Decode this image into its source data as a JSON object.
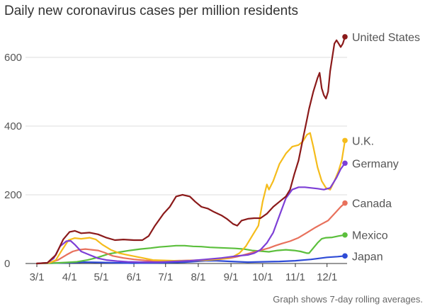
{
  "chart_data": {
    "type": "line",
    "title": "Daily new coronavirus cases per million residents",
    "note": "Graph shows 7-day rolling averages.",
    "xlabel": "",
    "ylabel": "",
    "ylim": [
      0,
      680
    ],
    "y_ticks": [
      {
        "value": 0,
        "label": "0"
      },
      {
        "value": 200,
        "label": "200"
      },
      {
        "value": 400,
        "label": "400"
      },
      {
        "value": 600,
        "label": "600"
      }
    ],
    "x_ticks": [
      {
        "value": 0,
        "label": "3/1"
      },
      {
        "value": 31,
        "label": "4/1"
      },
      {
        "value": 61,
        "label": "5/1"
      },
      {
        "value": 92,
        "label": "6/1"
      },
      {
        "value": 122,
        "label": "7/1"
      },
      {
        "value": 153,
        "label": "8/1"
      },
      {
        "value": 184,
        "label": "9/1"
      },
      {
        "value": 214,
        "label": "10/1"
      },
      {
        "value": 245,
        "label": "11/1"
      },
      {
        "value": 275,
        "label": "12/1"
      }
    ],
    "x_unit": "days since 3/1",
    "series": [
      {
        "name": "United States",
        "color": "#8b1a1a",
        "points": [
          [
            0,
            0
          ],
          [
            10,
            2
          ],
          [
            18,
            25
          ],
          [
            25,
            70
          ],
          [
            31,
            92
          ],
          [
            36,
            95
          ],
          [
            42,
            88
          ],
          [
            50,
            90
          ],
          [
            58,
            85
          ],
          [
            66,
            75
          ],
          [
            74,
            68
          ],
          [
            82,
            70
          ],
          [
            92,
            68
          ],
          [
            100,
            68
          ],
          [
            106,
            80
          ],
          [
            112,
            110
          ],
          [
            120,
            145
          ],
          [
            126,
            165
          ],
          [
            132,
            195
          ],
          [
            138,
            200
          ],
          [
            145,
            195
          ],
          [
            150,
            180
          ],
          [
            156,
            165
          ],
          [
            162,
            160
          ],
          [
            168,
            150
          ],
          [
            175,
            140
          ],
          [
            180,
            130
          ],
          [
            186,
            115
          ],
          [
            190,
            110
          ],
          [
            194,
            125
          ],
          [
            200,
            130
          ],
          [
            206,
            132
          ],
          [
            212,
            132
          ],
          [
            218,
            145
          ],
          [
            224,
            165
          ],
          [
            230,
            180
          ],
          [
            236,
            195
          ],
          [
            240,
            215
          ],
          [
            244,
            260
          ],
          [
            248,
            300
          ],
          [
            252,
            360
          ],
          [
            256,
            420
          ],
          [
            258,
            450
          ],
          [
            262,
            500
          ],
          [
            266,
            540
          ],
          [
            268,
            555
          ],
          [
            270,
            510
          ],
          [
            272,
            490
          ],
          [
            274,
            480
          ],
          [
            276,
            500
          ],
          [
            278,
            560
          ],
          [
            280,
            600
          ],
          [
            282,
            640
          ],
          [
            284,
            650
          ],
          [
            286,
            640
          ],
          [
            288,
            630
          ],
          [
            290,
            640
          ],
          [
            292,
            660
          ]
        ]
      },
      {
        "name": "U.K.",
        "color": "#f5bc1b",
        "points": [
          [
            0,
            0
          ],
          [
            12,
            2
          ],
          [
            18,
            10
          ],
          [
            24,
            40
          ],
          [
            30,
            68
          ],
          [
            36,
            74
          ],
          [
            42,
            72
          ],
          [
            50,
            75
          ],
          [
            56,
            70
          ],
          [
            62,
            55
          ],
          [
            70,
            40
          ],
          [
            78,
            30
          ],
          [
            86,
            25
          ],
          [
            94,
            20
          ],
          [
            102,
            15
          ],
          [
            110,
            10
          ],
          [
            120,
            9
          ],
          [
            130,
            8
          ],
          [
            140,
            8
          ],
          [
            150,
            9
          ],
          [
            160,
            10
          ],
          [
            170,
            12
          ],
          [
            180,
            15
          ],
          [
            186,
            20
          ],
          [
            192,
            30
          ],
          [
            198,
            50
          ],
          [
            204,
            80
          ],
          [
            210,
            110
          ],
          [
            214,
            180
          ],
          [
            218,
            230
          ],
          [
            220,
            215
          ],
          [
            224,
            240
          ],
          [
            230,
            290
          ],
          [
            236,
            320
          ],
          [
            242,
            340
          ],
          [
            248,
            345
          ],
          [
            252,
            355
          ],
          [
            256,
            375
          ],
          [
            259,
            380
          ],
          [
            262,
            340
          ],
          [
            266,
            280
          ],
          [
            270,
            240
          ],
          [
            274,
            220
          ],
          [
            278,
            215
          ],
          [
            282,
            240
          ],
          [
            286,
            270
          ],
          [
            289,
            300
          ],
          [
            292,
            358
          ]
        ]
      },
      {
        "name": "Germany",
        "color": "#7d3fd6",
        "points": [
          [
            0,
            0
          ],
          [
            10,
            2
          ],
          [
            16,
            15
          ],
          [
            22,
            50
          ],
          [
            28,
            65
          ],
          [
            32,
            66
          ],
          [
            36,
            55
          ],
          [
            42,
            35
          ],
          [
            50,
            25
          ],
          [
            58,
            15
          ],
          [
            66,
            10
          ],
          [
            76,
            7
          ],
          [
            86,
            5
          ],
          [
            100,
            4
          ],
          [
            115,
            4
          ],
          [
            130,
            6
          ],
          [
            145,
            8
          ],
          [
            160,
            12
          ],
          [
            175,
            16
          ],
          [
            190,
            22
          ],
          [
            200,
            25
          ],
          [
            206,
            30
          ],
          [
            212,
            40
          ],
          [
            218,
            60
          ],
          [
            224,
            90
          ],
          [
            230,
            140
          ],
          [
            236,
            190
          ],
          [
            242,
            215
          ],
          [
            248,
            222
          ],
          [
            254,
            222
          ],
          [
            260,
            220
          ],
          [
            266,
            218
          ],
          [
            272,
            215
          ],
          [
            278,
            220
          ],
          [
            284,
            250
          ],
          [
            288,
            275
          ],
          [
            292,
            292
          ]
        ]
      },
      {
        "name": "Canada",
        "color": "#e8715c",
        "points": [
          [
            0,
            0
          ],
          [
            12,
            2
          ],
          [
            20,
            10
          ],
          [
            28,
            25
          ],
          [
            34,
            35
          ],
          [
            40,
            40
          ],
          [
            46,
            42
          ],
          [
            52,
            40
          ],
          [
            58,
            38
          ],
          [
            64,
            32
          ],
          [
            72,
            22
          ],
          [
            82,
            16
          ],
          [
            92,
            12
          ],
          [
            102,
            9
          ],
          [
            115,
            7
          ],
          [
            130,
            8
          ],
          [
            145,
            9
          ],
          [
            160,
            10
          ],
          [
            172,
            12
          ],
          [
            182,
            15
          ],
          [
            190,
            20
          ],
          [
            196,
            25
          ],
          [
            202,
            30
          ],
          [
            208,
            35
          ],
          [
            214,
            40
          ],
          [
            220,
            45
          ],
          [
            226,
            52
          ],
          [
            232,
            58
          ],
          [
            240,
            65
          ],
          [
            248,
            75
          ],
          [
            256,
            90
          ],
          [
            264,
            105
          ],
          [
            270,
            115
          ],
          [
            276,
            125
          ],
          [
            282,
            145
          ],
          [
            288,
            165
          ],
          [
            292,
            176
          ]
        ]
      },
      {
        "name": "Mexico",
        "color": "#5bbf3c",
        "points": [
          [
            0,
            0
          ],
          [
            14,
            1
          ],
          [
            28,
            3
          ],
          [
            38,
            5
          ],
          [
            48,
            10
          ],
          [
            58,
            18
          ],
          [
            68,
            28
          ],
          [
            78,
            33
          ],
          [
            88,
            38
          ],
          [
            98,
            42
          ],
          [
            108,
            45
          ],
          [
            116,
            48
          ],
          [
            124,
            50
          ],
          [
            132,
            52
          ],
          [
            140,
            52
          ],
          [
            148,
            50
          ],
          [
            156,
            49
          ],
          [
            164,
            47
          ],
          [
            172,
            46
          ],
          [
            180,
            45
          ],
          [
            188,
            44
          ],
          [
            196,
            42
          ],
          [
            204,
            38
          ],
          [
            212,
            36
          ],
          [
            220,
            34
          ],
          [
            228,
            38
          ],
          [
            236,
            40
          ],
          [
            244,
            38
          ],
          [
            250,
            35
          ],
          [
            256,
            30
          ],
          [
            258,
            30
          ],
          [
            262,
            45
          ],
          [
            266,
            60
          ],
          [
            270,
            72
          ],
          [
            274,
            75
          ],
          [
            280,
            76
          ],
          [
            286,
            80
          ],
          [
            292,
            83
          ]
        ]
      },
      {
        "name": "Japan",
        "color": "#2e4bd6",
        "points": [
          [
            0,
            0
          ],
          [
            30,
            2
          ],
          [
            45,
            4
          ],
          [
            60,
            3
          ],
          [
            90,
            1
          ],
          [
            120,
            2
          ],
          [
            140,
            4
          ],
          [
            150,
            6
          ],
          [
            160,
            8
          ],
          [
            170,
            8
          ],
          [
            184,
            6
          ],
          [
            200,
            4
          ],
          [
            214,
            5
          ],
          [
            230,
            6
          ],
          [
            245,
            8
          ],
          [
            260,
            12
          ],
          [
            275,
            18
          ],
          [
            285,
            20
          ],
          [
            292,
            22
          ]
        ]
      }
    ]
  }
}
